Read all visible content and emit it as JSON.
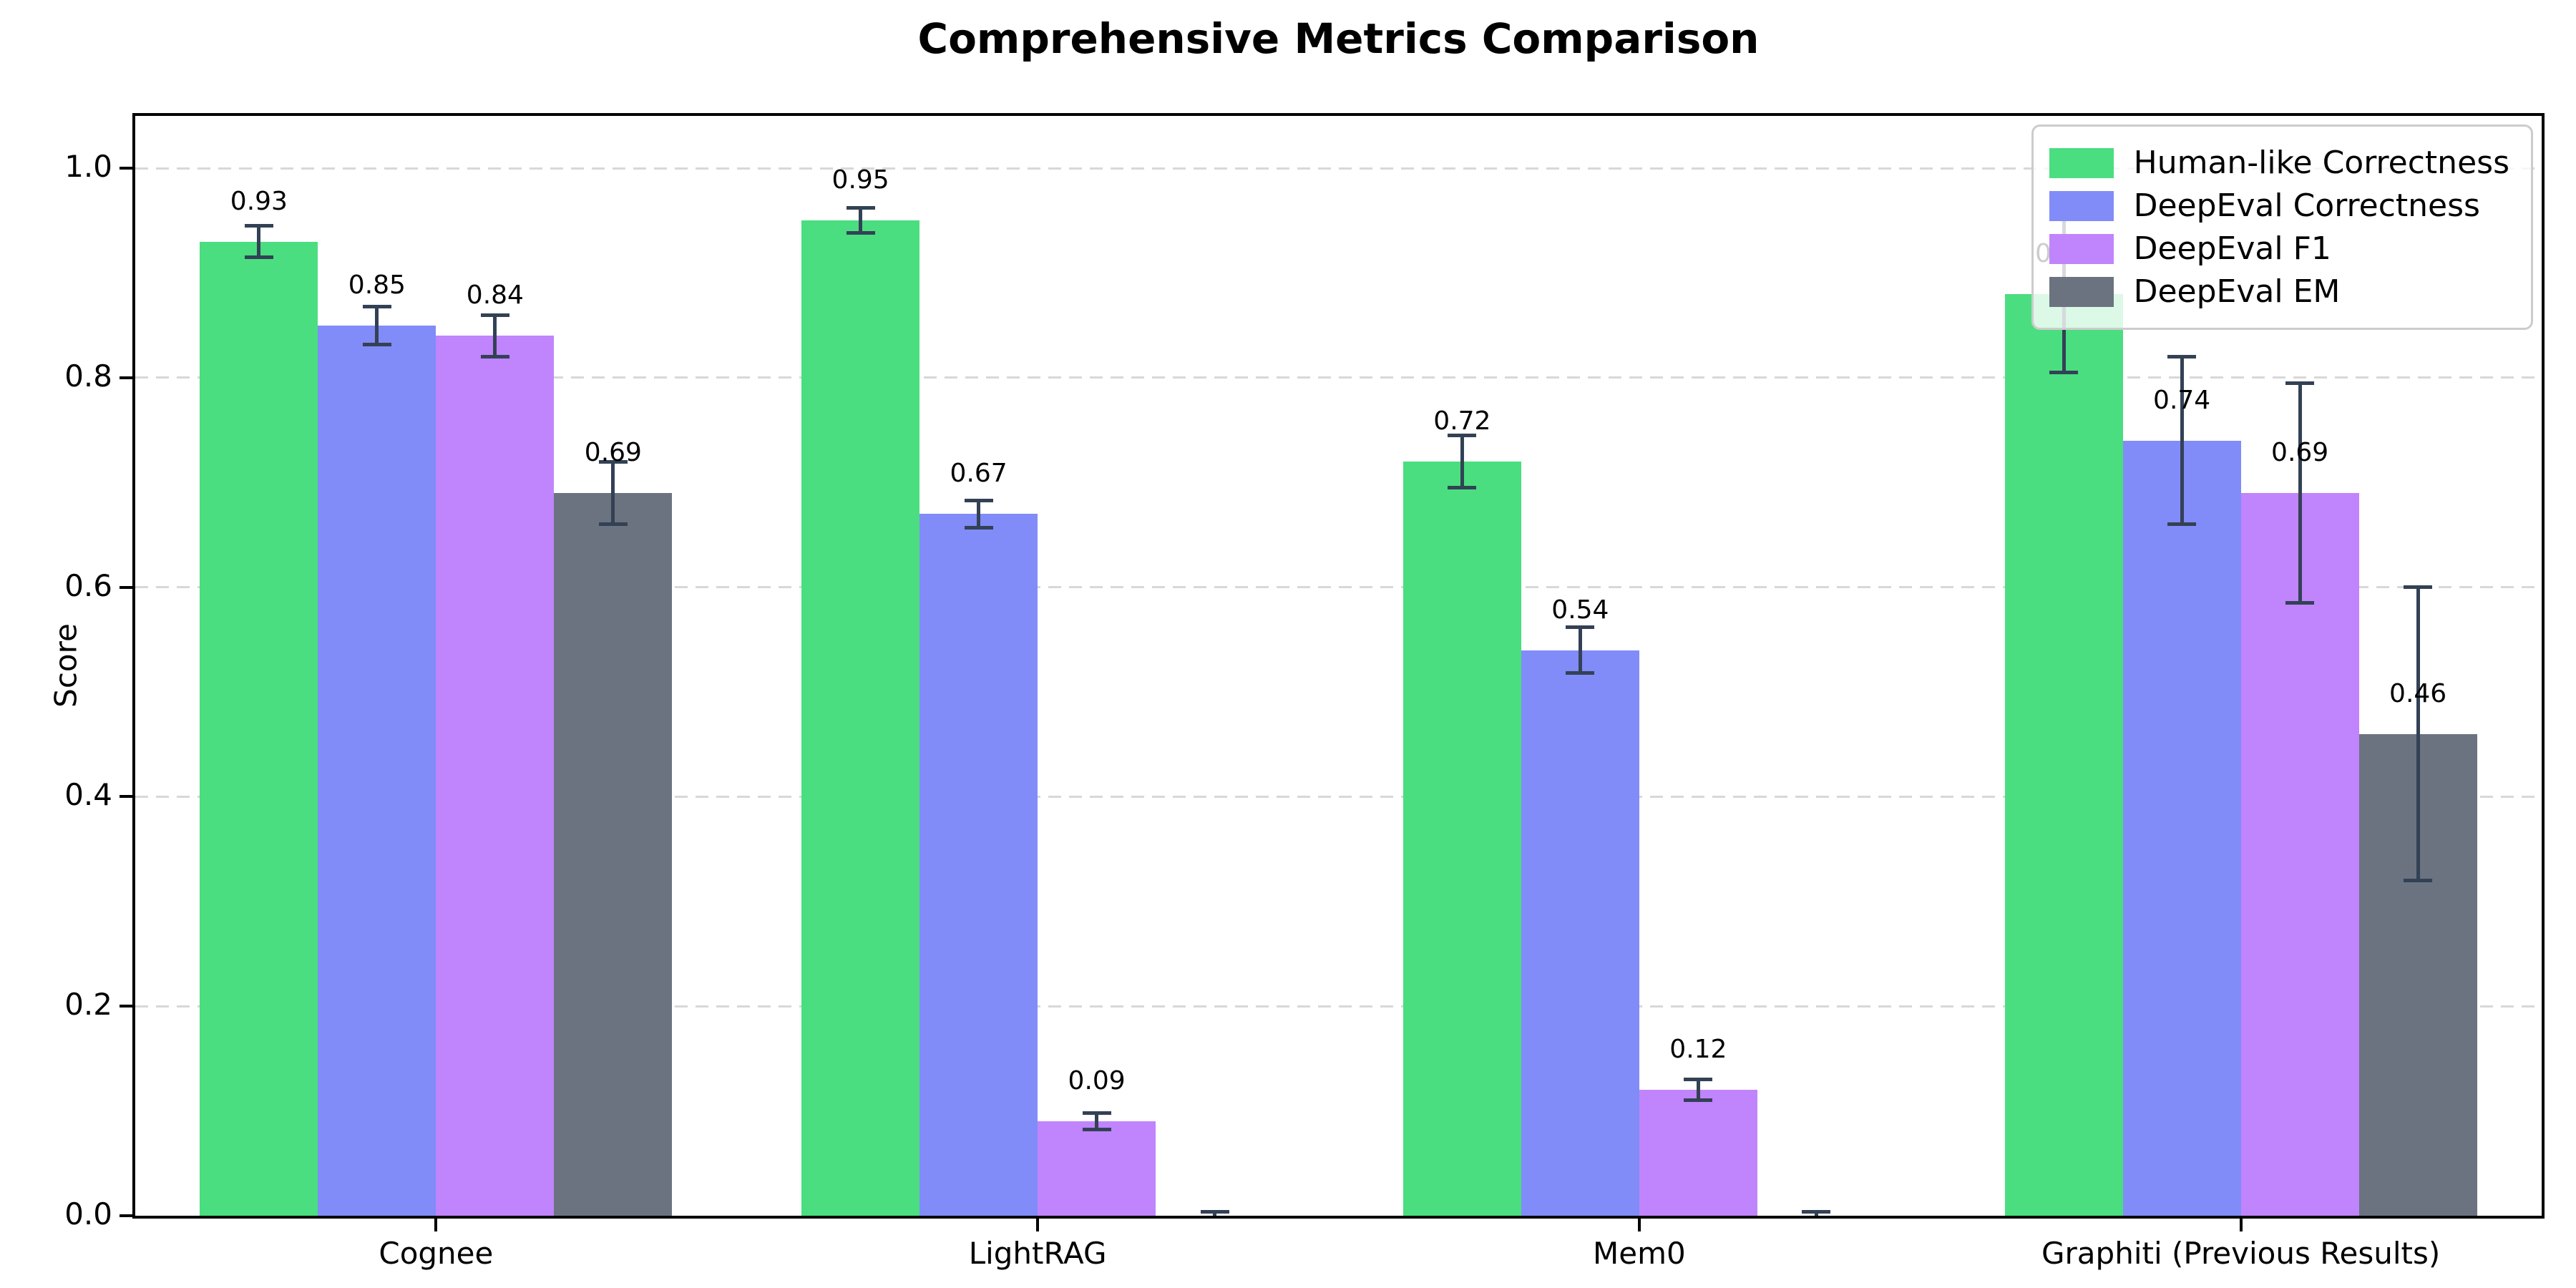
{
  "chart_data": {
    "type": "bar",
    "title": "Comprehensive Metrics Comparison",
    "ylabel": "Score",
    "xlabel": "",
    "ylim": [
      0,
      1.05
    ],
    "yticks": [
      0.0,
      0.2,
      0.4,
      0.6,
      0.8,
      1.0
    ],
    "ytick_labels": [
      "0.0",
      "0.2",
      "0.4",
      "0.6",
      "0.8",
      "1.0"
    ],
    "grid": "horizontal dashed gridlines at each y tick",
    "legend_position": "upper right",
    "categories": [
      "Cognee",
      "LightRAG",
      "Mem0",
      "Graphiti (Previous Results)"
    ],
    "series": [
      {
        "name": "Human-like Correctness",
        "color": "#4ade80",
        "values": [
          0.93,
          0.95,
          0.72,
          0.88
        ],
        "errors": [
          0.015,
          0.012,
          0.025,
          0.075
        ],
        "labels": [
          "0.93",
          "0.95",
          "0.72",
          "0.88"
        ]
      },
      {
        "name": "DeepEval Correctness",
        "color": "#818cf8",
        "values": [
          0.85,
          0.67,
          0.54,
          0.74
        ],
        "errors": [
          0.018,
          0.013,
          0.022,
          0.08
        ],
        "labels": [
          "0.85",
          "0.67",
          "0.54",
          "0.74"
        ]
      },
      {
        "name": "DeepEval F1",
        "color": "#c084fc",
        "values": [
          0.84,
          0.09,
          0.12,
          0.69
        ],
        "errors": [
          0.02,
          0.008,
          0.01,
          0.105
        ],
        "labels": [
          "0.84",
          "0.09",
          "0.12",
          "0.69"
        ]
      },
      {
        "name": "DeepEval EM",
        "color": "#6b7280",
        "values": [
          0.69,
          0.0,
          0.0,
          0.46
        ],
        "errors": [
          0.03,
          0.004,
          0.004,
          0.14
        ],
        "labels": [
          "0.69",
          "",
          "",
          "0.46"
        ]
      }
    ],
    "error_bar_color": "#334155",
    "grid_color": "#d8d8d8",
    "axis_color": "#000000",
    "background_color": "#ffffff"
  }
}
